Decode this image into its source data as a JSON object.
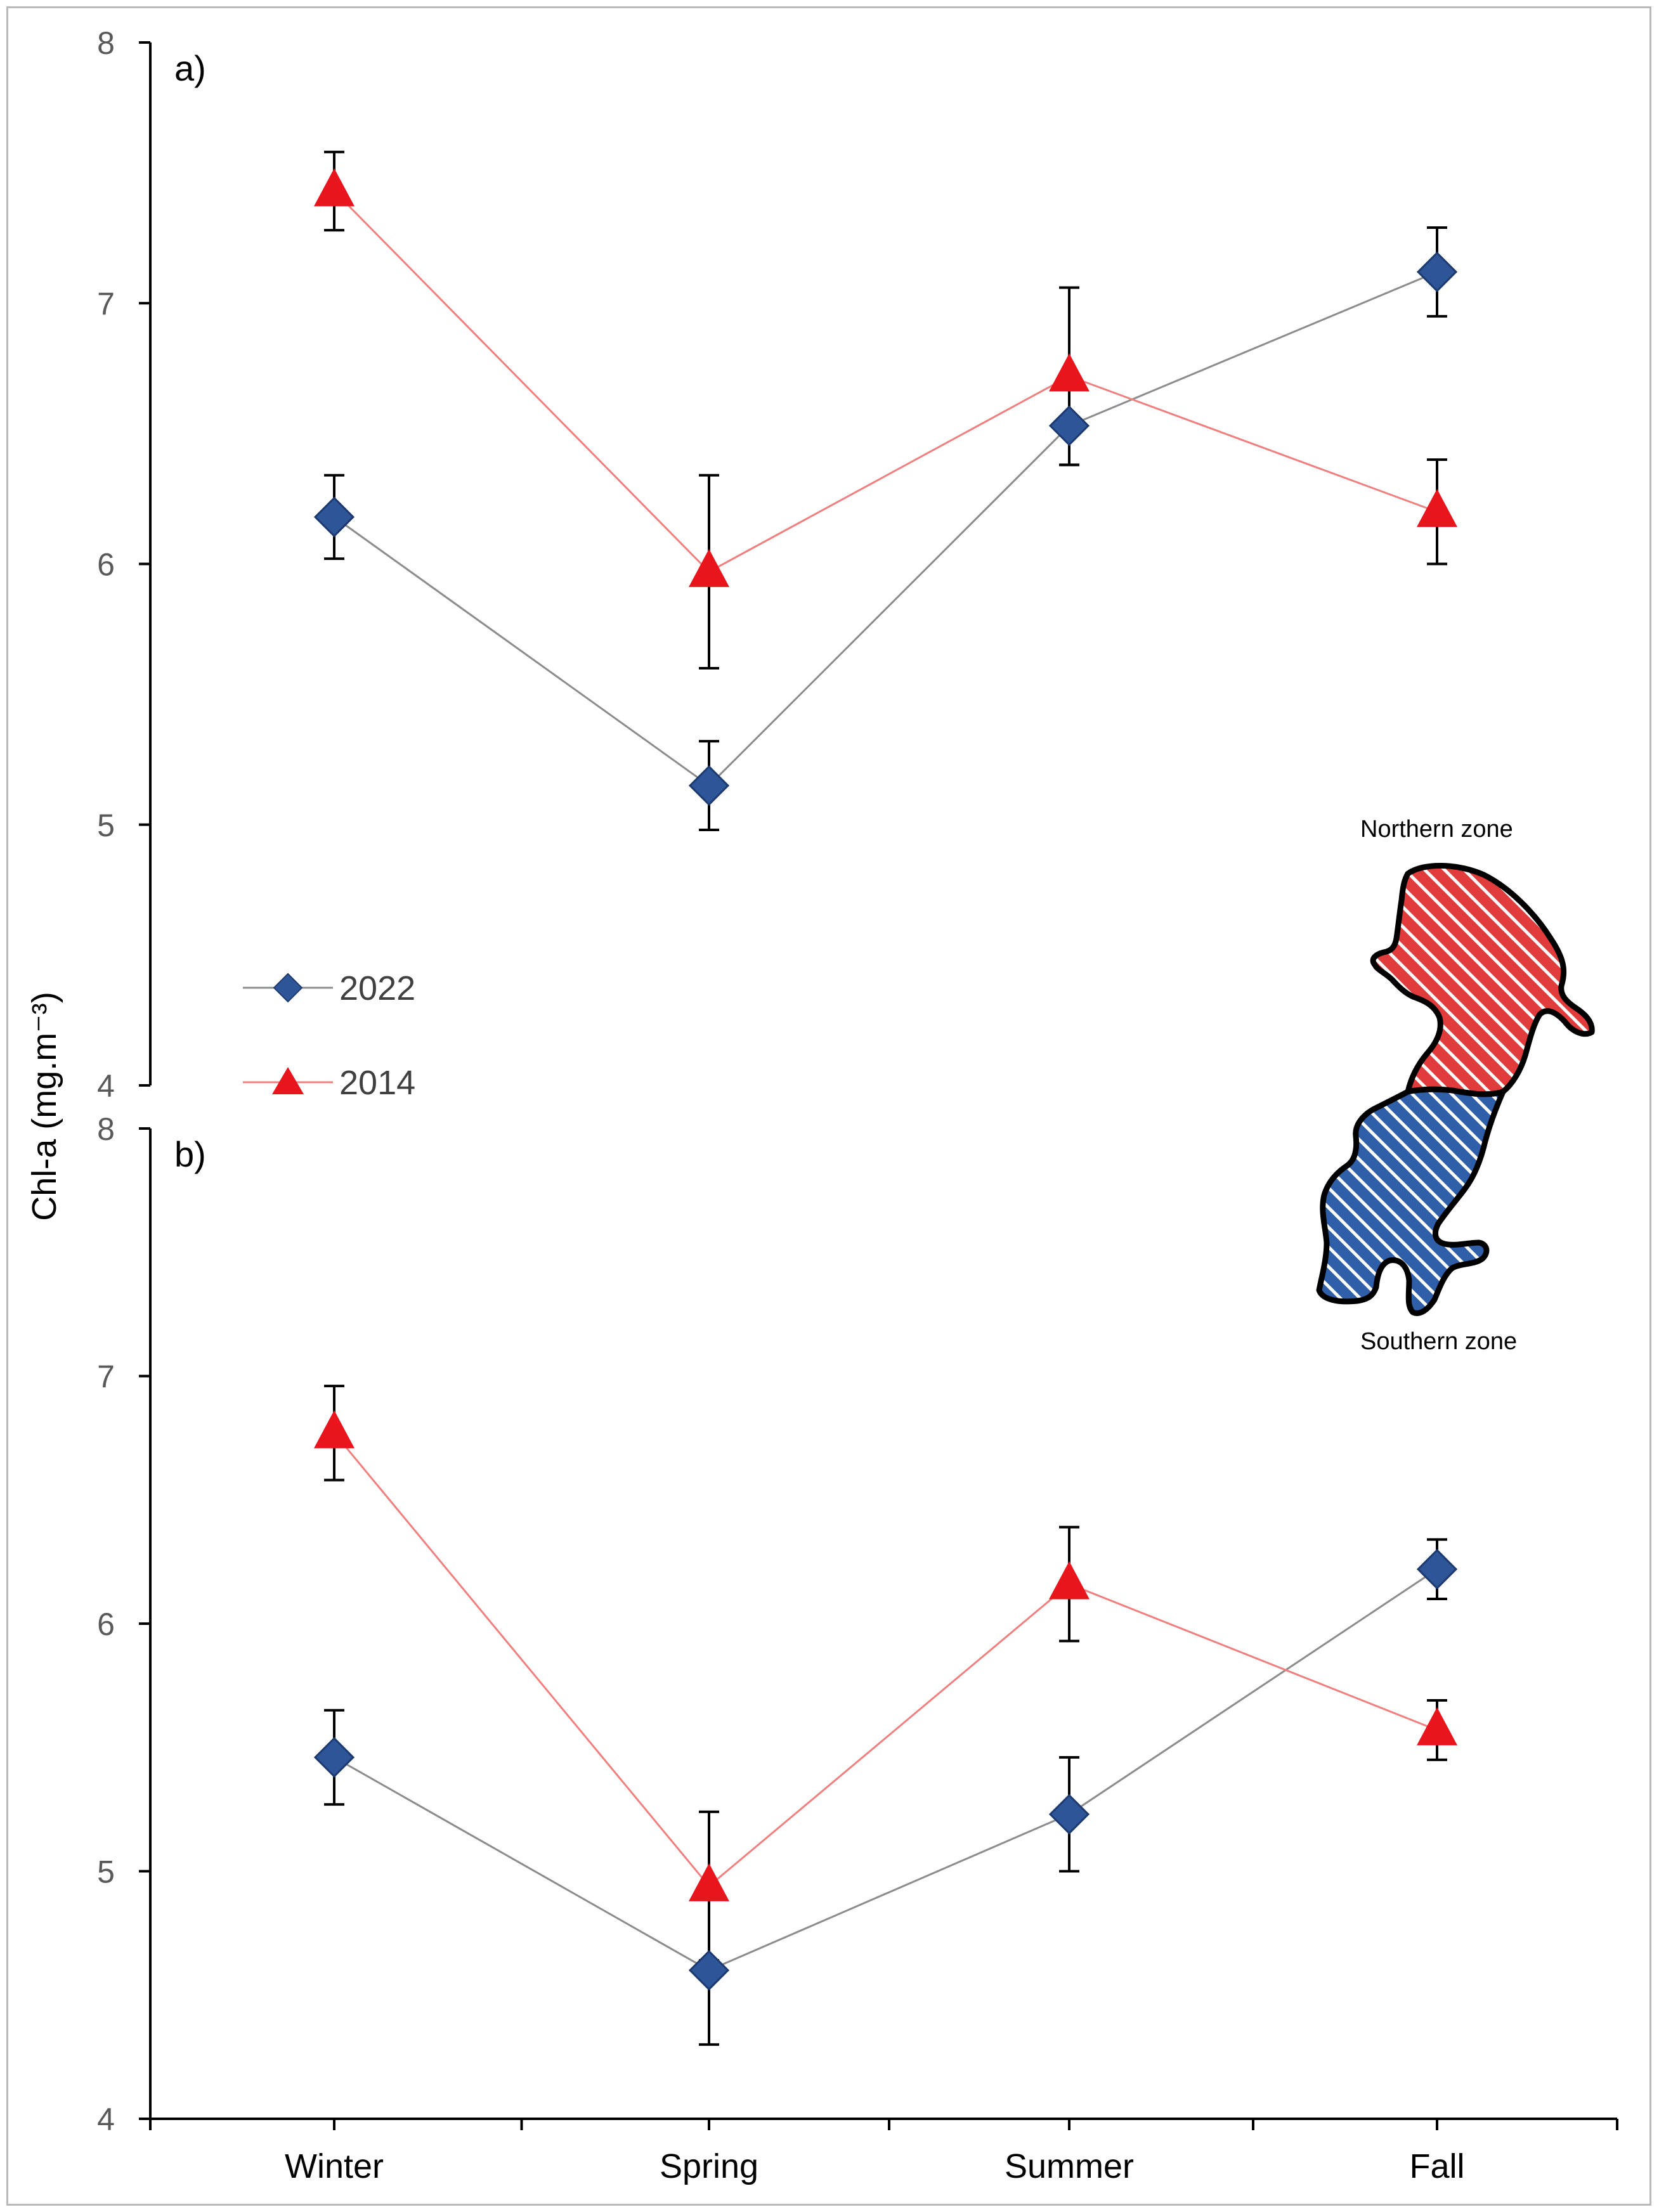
{
  "figure": {
    "ylabel": "Chl-a (mg.m⁻³)"
  },
  "legend": {
    "entries": [
      {
        "label": "2022",
        "color": "#2e5597",
        "marker": "diamond"
      },
      {
        "label": "2014",
        "color": "#e8151c",
        "marker": "triangle"
      }
    ]
  },
  "map": {
    "north_label": "Northern zone",
    "south_label": "Southern zone",
    "north_color": "#e03c3c",
    "south_color": "#2e5fa8"
  },
  "chart_data": [
    {
      "type": "line",
      "panel": "a)",
      "categories": [
        "Winter",
        "Spring",
        "Summer",
        "Fall"
      ],
      "ylim": [
        4,
        8
      ],
      "yticks": [
        4,
        5,
        6,
        7,
        8
      ],
      "series": [
        {
          "name": "2022",
          "color": "#2e5597",
          "line_color": "#8c8c8c",
          "values": [
            6.18,
            5.15,
            6.53,
            7.12
          ],
          "err": [
            0.16,
            0.17,
            0.15,
            0.17
          ]
        },
        {
          "name": "2014",
          "color": "#e8151c",
          "line_color": "#f08080",
          "values": [
            7.43,
            5.97,
            6.72,
            6.2
          ],
          "err": [
            0.15,
            0.37,
            0.34,
            0.2
          ]
        }
      ]
    },
    {
      "type": "line",
      "panel": "b)",
      "categories": [
        "Winter",
        "Spring",
        "Summer",
        "Fall"
      ],
      "ylim": [
        4,
        8
      ],
      "yticks": [
        4,
        5,
        6,
        7,
        8
      ],
      "series": [
        {
          "name": "2022",
          "color": "#2e5597",
          "line_color": "#8c8c8c",
          "values": [
            5.46,
            4.6,
            5.23,
            6.22
          ],
          "err": [
            0.19,
            0.3,
            0.23,
            0.12
          ]
        },
        {
          "name": "2014",
          "color": "#e8151c",
          "line_color": "#f08080",
          "values": [
            6.77,
            4.94,
            6.16,
            5.57
          ],
          "err": [
            0.19,
            0.3,
            0.23,
            0.12
          ]
        }
      ]
    }
  ]
}
